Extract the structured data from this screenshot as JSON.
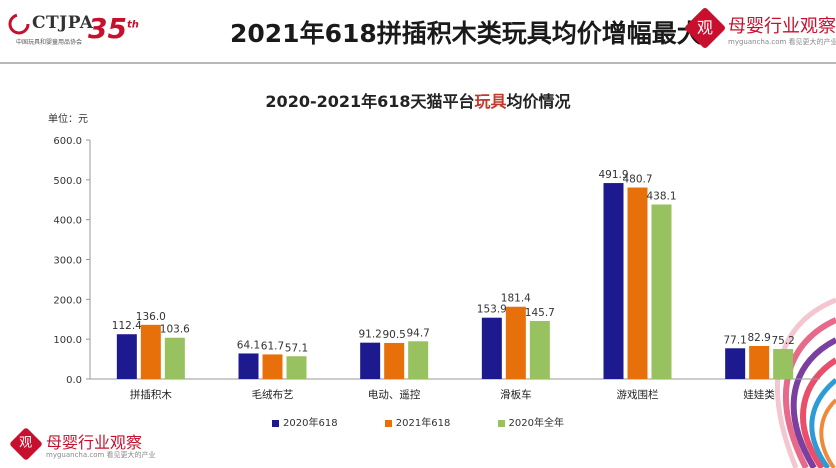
{
  "header": {
    "logo_text": "CTJPA",
    "logo_sub": "中国玩具和婴童用品协会",
    "anniversary": "35",
    "anniversary_suffix": "th",
    "title": "2021年618拼插积木类玩具均价增幅最大"
  },
  "brand": {
    "name": "母婴行业观察",
    "url": "myguancha.com 看见更大的产业",
    "seal": "观"
  },
  "colors": {
    "s2020": "#1d1a8f",
    "s2021": "#e8700a",
    "sfull": "#98c15f"
  },
  "chart_data": {
    "type": "bar",
    "title_prefix": "2020-2021年618天猫平台",
    "title_highlight": "玩具",
    "title_suffix": "均价情况",
    "ylabel": "单位：元",
    "ylim": [
      0,
      600
    ],
    "yticks": [
      "0.0",
      "100.0",
      "200.0",
      "300.0",
      "400.0",
      "500.0",
      "600.0"
    ],
    "categories": [
      "拼插积木",
      "毛绒布艺",
      "电动、遥控",
      "滑板车",
      "游戏围栏",
      "娃娃类"
    ],
    "series": [
      {
        "name": "2020年618",
        "values": [
          112.4,
          64.1,
          91.2,
          153.9,
          491.9,
          77.1
        ],
        "labels": [
          "112.4",
          "64.1",
          "91.2",
          "153.9",
          "491.9",
          "77.1"
        ]
      },
      {
        "name": "2021年618",
        "values": [
          136.0,
          61.7,
          90.5,
          181.4,
          480.7,
          82.9
        ],
        "labels": [
          "136.0",
          "61.7",
          "90.5",
          "181.4",
          "480.7",
          "82.9"
        ]
      },
      {
        "name": "2020年全年",
        "values": [
          103.6,
          57.1,
          94.7,
          145.7,
          438.1,
          75.2
        ],
        "labels": [
          "103.6",
          "57.1",
          "94.7",
          "145.7",
          "438.1",
          "75.2"
        ]
      }
    ]
  }
}
